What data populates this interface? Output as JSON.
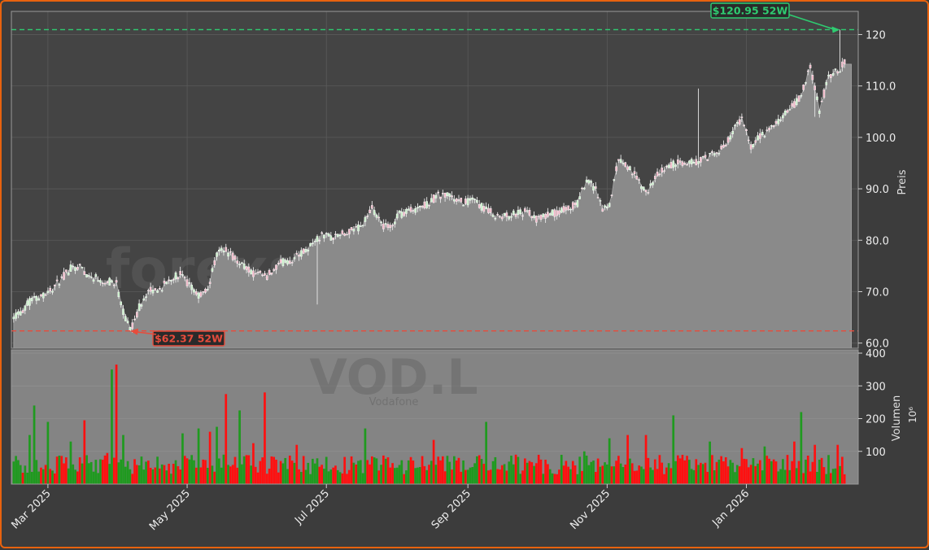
{
  "chart_data": {
    "type": "candlestick",
    "ticker": "VOD.L",
    "company": "Vodafone",
    "watermark": "forexsignale.trade",
    "price_axis": {
      "label": "Preis",
      "ylim": [
        59,
        124.5
      ],
      "ticks": [
        60,
        70,
        80,
        90,
        100,
        110,
        120
      ],
      "tick_labels": [
        "60.0",
        "70.0",
        "80.0",
        "90.0",
        "100.0",
        "110.0",
        "120"
      ]
    },
    "volume_axis": {
      "label": "Volumen",
      "unit": "10⁶",
      "ylim": [
        0,
        410
      ],
      "ticks": [
        100,
        200,
        300,
        400
      ],
      "tick_labels": [
        "100",
        "200",
        "300",
        "400"
      ]
    },
    "x_axis": {
      "ticks": [
        "Mar 2025",
        "May 2025",
        "Jul 2025",
        "Sep 2025",
        "Nov 2025",
        "Jan 2026"
      ],
      "tick_days": [
        16,
        77,
        138,
        200,
        261,
        322
      ],
      "range_days": [
        0,
        371
      ]
    },
    "grid": true,
    "annotations": {
      "high": {
        "value": 120.95,
        "label": "$120.95 52W",
        "day": 363,
        "color": "#2ecc71"
      },
      "low": {
        "value": 62.37,
        "label": "$62.37 52W",
        "day": 52,
        "color": "#e74c3c"
      }
    },
    "price_keyframes": [
      [
        3,
        65.5
      ],
      [
        8,
        68
      ],
      [
        14,
        69.5
      ],
      [
        18,
        70.5
      ],
      [
        22,
        72.5
      ],
      [
        26,
        74.5
      ],
      [
        30,
        75
      ],
      [
        34,
        73
      ],
      [
        38,
        72.5
      ],
      [
        42,
        72
      ],
      [
        46,
        71.5
      ],
      [
        49,
        66
      ],
      [
        52,
        62.4
      ],
      [
        56,
        67
      ],
      [
        60,
        70
      ],
      [
        65,
        70.5
      ],
      [
        70,
        72.5
      ],
      [
        74,
        73.5
      ],
      [
        78,
        71
      ],
      [
        82,
        69
      ],
      [
        86,
        70.5
      ],
      [
        88,
        74
      ],
      [
        91,
        78.5
      ],
      [
        94,
        78
      ],
      [
        98,
        76.5
      ],
      [
        102,
        75
      ],
      [
        106,
        73.5
      ],
      [
        112,
        73
      ],
      [
        118,
        75.5
      ],
      [
        124,
        76.5
      ],
      [
        130,
        78.5
      ],
      [
        134,
        80
      ],
      [
        136,
        81
      ],
      [
        140,
        80.5
      ],
      [
        148,
        81.5
      ],
      [
        154,
        83
      ],
      [
        158,
        86
      ],
      [
        162,
        83
      ],
      [
        166,
        82.5
      ],
      [
        170,
        85
      ],
      [
        176,
        86
      ],
      [
        182,
        87
      ],
      [
        186,
        88.5
      ],
      [
        190,
        89
      ],
      [
        196,
        87.5
      ],
      [
        202,
        87.5
      ],
      [
        208,
        86
      ],
      [
        214,
        84.5
      ],
      [
        220,
        85
      ],
      [
        226,
        85.5
      ],
      [
        230,
        84
      ],
      [
        236,
        85
      ],
      [
        242,
        86
      ],
      [
        248,
        87
      ],
      [
        252,
        92
      ],
      [
        256,
        90
      ],
      [
        259,
        86
      ],
      [
        262,
        87
      ],
      [
        266,
        96
      ],
      [
        270,
        94.5
      ],
      [
        274,
        92
      ],
      [
        278,
        89
      ],
      [
        282,
        92
      ],
      [
        286,
        94
      ],
      [
        292,
        95
      ],
      [
        298,
        95
      ],
      [
        304,
        96
      ],
      [
        310,
        97
      ],
      [
        316,
        101
      ],
      [
        320,
        103.5
      ],
      [
        324,
        98.5
      ],
      [
        328,
        100
      ],
      [
        334,
        102
      ],
      [
        338,
        104
      ],
      [
        342,
        106
      ],
      [
        346,
        108
      ],
      [
        350,
        114
      ],
      [
        354,
        105
      ],
      [
        358,
        112
      ],
      [
        362,
        113
      ],
      [
        366,
        115
      ]
    ],
    "volume_spikes": [
      [
        8,
        150
      ],
      [
        10,
        240
      ],
      [
        16,
        190
      ],
      [
        26,
        130
      ],
      [
        32,
        195
      ],
      [
        42,
        95
      ],
      [
        44,
        350
      ],
      [
        46,
        365
      ],
      [
        49,
        150
      ],
      [
        66,
        60
      ],
      [
        75,
        155
      ],
      [
        82,
        170
      ],
      [
        87,
        160
      ],
      [
        90,
        175
      ],
      [
        94,
        275
      ],
      [
        100,
        225
      ],
      [
        106,
        125
      ],
      [
        111,
        280
      ],
      [
        125,
        120
      ],
      [
        155,
        170
      ],
      [
        185,
        135
      ],
      [
        208,
        190
      ],
      [
        251,
        100
      ],
      [
        262,
        140
      ],
      [
        270,
        150
      ],
      [
        278,
        150
      ],
      [
        290,
        210
      ],
      [
        306,
        130
      ],
      [
        320,
        110
      ],
      [
        330,
        115
      ],
      [
        343,
        130
      ],
      [
        346,
        220
      ],
      [
        352,
        120
      ],
      [
        362,
        120
      ]
    ],
    "volume_baseline": [
      30,
      90
    ],
    "total_days": 371
  }
}
